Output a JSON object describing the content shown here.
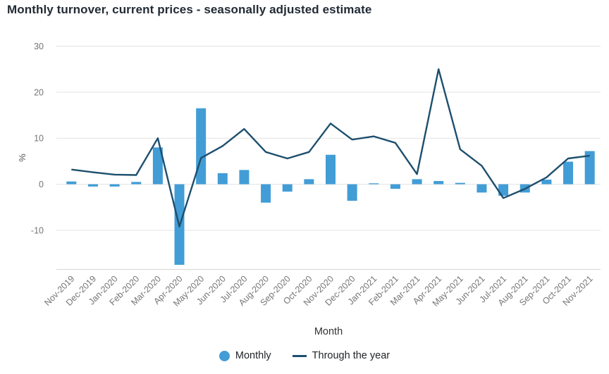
{
  "page": {
    "title": "Monthly turnover, current prices - seasonally adjusted estimate"
  },
  "chart_data": {
    "type": "combo",
    "title": "Monthly turnover, current prices - seasonally adjusted estimate",
    "xlabel": "Month",
    "ylabel": "%",
    "categories": [
      "Nov-2019",
      "Dec-2019",
      "Jan-2020",
      "Feb-2020",
      "Mar-2020",
      "Apr-2020",
      "May-2020",
      "Jun-2020",
      "Jul-2020",
      "Aug-2020",
      "Sep-2020",
      "Oct-2020",
      "Nov-2020",
      "Dec-2020",
      "Jan-2021",
      "Feb-2021",
      "Mar-2021",
      "Apr-2021",
      "May-2021",
      "Jun-2021",
      "Jul-2021",
      "Aug-2021",
      "Sep-2021",
      "Oct-2021",
      "Nov-2021"
    ],
    "series": [
      {
        "name": "Monthly",
        "type": "bar",
        "color": "#429dd6",
        "values": [
          0.6,
          -0.5,
          -0.5,
          0.5,
          8,
          -17.5,
          16.5,
          2.4,
          3.1,
          -4,
          -1.6,
          1.1,
          6.4,
          -3.6,
          0.2,
          -1,
          1.1,
          0.7,
          0.3,
          -1.8,
          -2.5,
          -1.8,
          1,
          4.9,
          7.2
        ]
      },
      {
        "name": "Through the year",
        "type": "line",
        "color": "#1d4f6e",
        "values": [
          3.2,
          2.6,
          2.1,
          2.0,
          10,
          -9.2,
          5.7,
          8.3,
          12,
          7.0,
          5.6,
          7.0,
          13.2,
          9.7,
          10.4,
          9.0,
          2.2,
          25,
          7.6,
          4.0,
          -3.0,
          -1.0,
          1.5,
          5.6,
          6.2
        ]
      }
    ],
    "yticks": [
      30,
      20,
      10,
      0,
      -10
    ],
    "ylim": [
      -18.5,
      30
    ],
    "grid": true,
    "legend_position": "bottom"
  }
}
